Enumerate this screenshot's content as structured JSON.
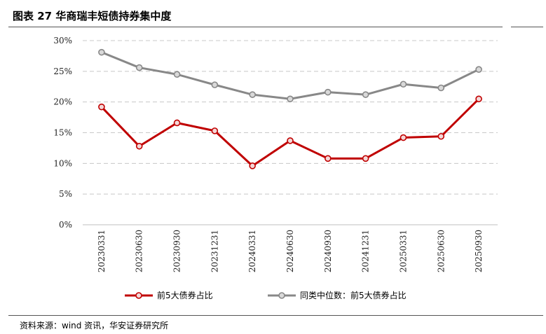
{
  "figure": {
    "title": "图表 27 华商瑞丰短债持券集中度",
    "source": "资料来源：wind 资讯，华安证券研究所"
  },
  "chart_data": {
    "type": "line",
    "title": "",
    "xlabel": "",
    "ylabel": "",
    "x": [
      "20230331",
      "20230630",
      "20230930",
      "20231231",
      "20240331",
      "20240630",
      "20240930",
      "20241231",
      "20250331",
      "20250630",
      "20250930"
    ],
    "yticks": [
      "0%",
      "5%",
      "10%",
      "15%",
      "20%",
      "25%",
      "30%"
    ],
    "ylim": [
      0,
      30
    ],
    "grid": "horizontal-dashed",
    "legend_position": "bottom",
    "series": [
      {
        "name": "前5大债券占比",
        "color": "#c00000",
        "values": [
          19.2,
          12.8,
          16.6,
          15.3,
          9.6,
          13.7,
          10.8,
          10.8,
          14.2,
          14.4,
          20.5
        ]
      },
      {
        "name": "同类中位数：前5大债券占比",
        "color": "#888888",
        "values": [
          28.1,
          25.6,
          24.5,
          22.8,
          21.2,
          20.5,
          21.6,
          21.2,
          22.9,
          22.3,
          25.3
        ]
      }
    ]
  }
}
